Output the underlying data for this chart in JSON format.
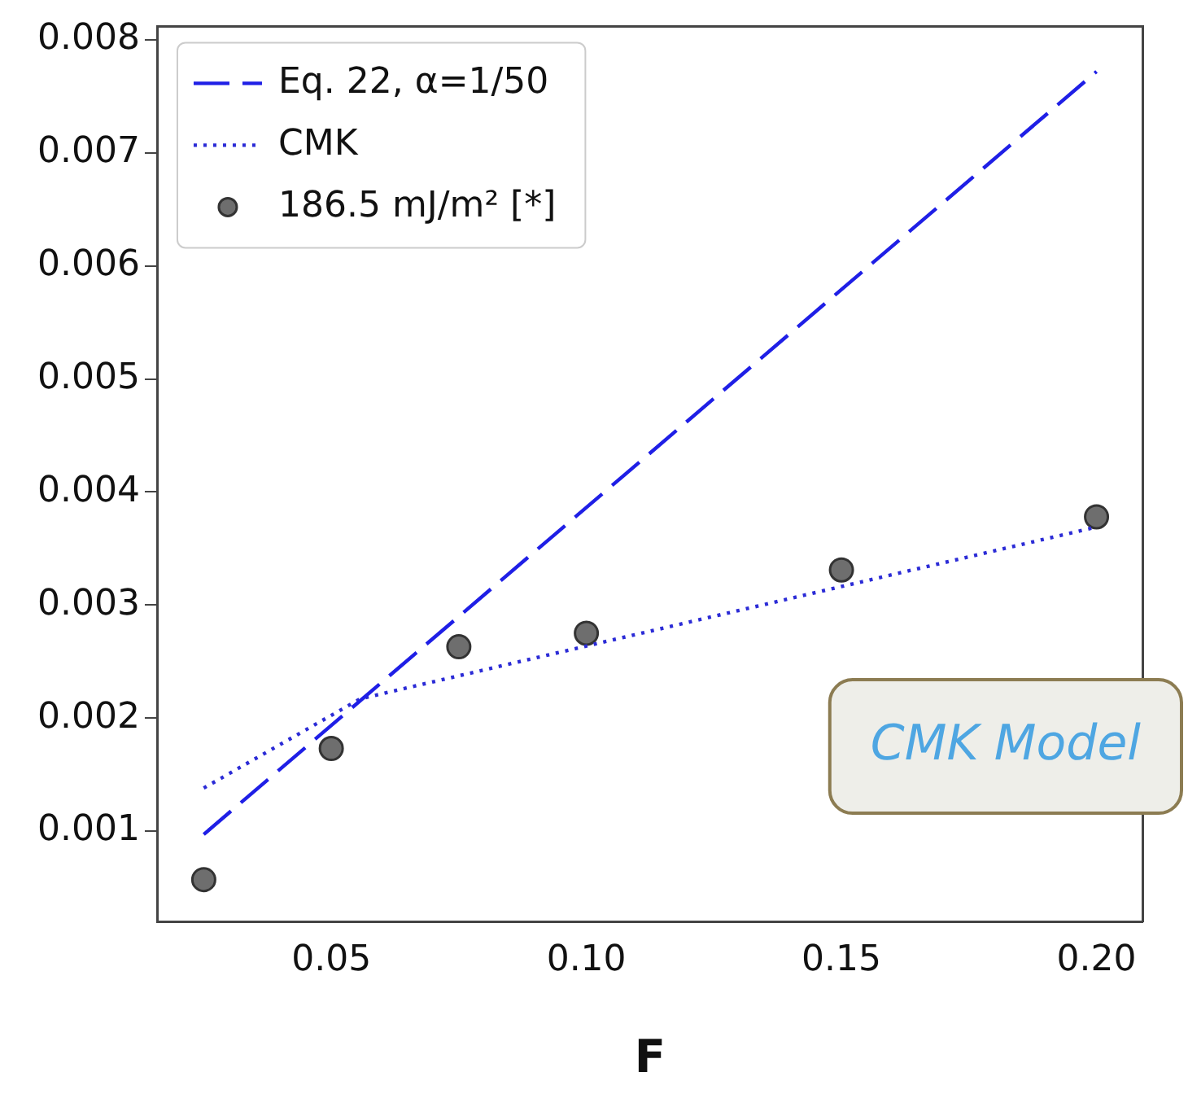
{
  "chart_data": {
    "type": "line",
    "xlabel": "F",
    "xlim": [
      0.016,
      0.209
    ],
    "xticks": [
      {
        "value": 0.05,
        "label": "0.05"
      },
      {
        "value": 0.1,
        "label": "0.10"
      },
      {
        "value": 0.15,
        "label": "0.15"
      },
      {
        "value": 0.2,
        "label": "0.20"
      }
    ],
    "ylim": [
      0.0002,
      0.00812
    ],
    "yticks": [
      0.001,
      0.002,
      0.003,
      0.004,
      0.005,
      0.006,
      0.007,
      0.008
    ],
    "grid": false,
    "legend": "top left",
    "annotations": [
      "CMK Model"
    ],
    "series": [
      {
        "name": "Eq. 22, α=1/50",
        "line_style": "dashed",
        "marker": "none",
        "color": "#1f1fe6",
        "x": [
          0.025,
          0.2
        ],
        "values": [
          0.00097,
          0.00772
        ]
      },
      {
        "name": "CMK",
        "line_style": "dotted",
        "marker": "none",
        "color": "#2b2bd6",
        "x": [
          0.025,
          0.0557,
          0.2
        ],
        "values": [
          0.00138,
          0.00217,
          0.00369
        ]
      },
      {
        "name": "186.5 mJ/m² [*]",
        "type": "scatter",
        "marker": "circle",
        "color": "#6e6e6e",
        "x": [
          0.025,
          0.05,
          0.075,
          0.1,
          0.15,
          0.2
        ],
        "values": [
          0.00057,
          0.00173,
          0.00263,
          0.00275,
          0.00331,
          0.00378
        ]
      }
    ]
  }
}
